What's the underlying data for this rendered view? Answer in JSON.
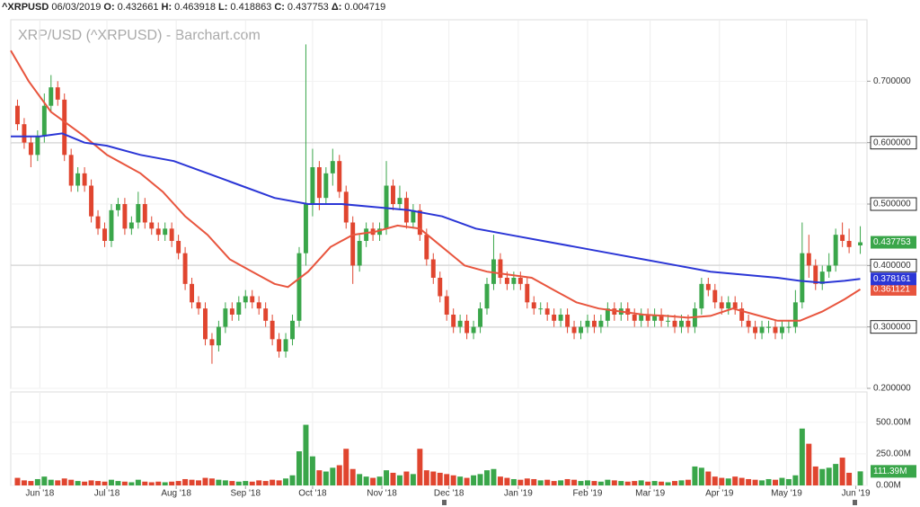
{
  "header": {
    "symbol": "^XRPUSD",
    "date": "06/03/2019",
    "fields": [
      {
        "label": "O:",
        "value": "0.432661"
      },
      {
        "label": "H:",
        "value": "0.463918"
      },
      {
        "label": "L:",
        "value": "0.418863"
      },
      {
        "label": "C:",
        "value": "0.437753"
      },
      {
        "label": "Δ:",
        "value": "0.004719"
      }
    ]
  },
  "chart_data": {
    "type": "candlestick",
    "title": "XRP/USD (^XRPUSD) - Barchart.com",
    "up_color": "#3aa64a",
    "down_color": "#e0452f",
    "grid": true,
    "xlim": [
      -3,
      380
    ],
    "xticks": [
      {
        "value": 10,
        "label": "Jun '18"
      },
      {
        "value": 40,
        "label": "Jul '18"
      },
      {
        "value": 71,
        "label": "Aug '18"
      },
      {
        "value": 102,
        "label": "Sep '18"
      },
      {
        "value": 132,
        "label": "Oct '18"
      },
      {
        "value": 163,
        "label": "Nov '18"
      },
      {
        "value": 193,
        "label": "Dec '18"
      },
      {
        "value": 224,
        "label": "Jan '19"
      },
      {
        "value": 255,
        "label": "Feb '19"
      },
      {
        "value": 283,
        "label": "Mar '19"
      },
      {
        "value": 314,
        "label": "Apr '19"
      },
      {
        "value": 344,
        "label": "May '19"
      },
      {
        "value": 375,
        "label": "Jun '19"
      }
    ],
    "ylim": [
      0.2,
      0.8
    ],
    "yticks": [
      {
        "value": 0.2,
        "label": "0.200000"
      },
      {
        "value": 0.3,
        "label": "0.300000"
      },
      {
        "value": 0.4,
        "label": "0.400000"
      },
      {
        "value": 0.5,
        "label": "0.500000"
      },
      {
        "value": 0.6,
        "label": "0.600000"
      },
      {
        "value": 0.7,
        "label": "0.700000"
      }
    ],
    "hlines": [
      0.6,
      0.5,
      0.4,
      0.3
    ],
    "x": [
      0,
      3,
      6,
      9,
      12,
      15,
      18,
      21,
      24,
      27,
      30,
      33,
      36,
      39,
      42,
      45,
      48,
      51,
      54,
      57,
      60,
      63,
      66,
      69,
      72,
      75,
      78,
      81,
      84,
      87,
      90,
      93,
      96,
      99,
      102,
      105,
      108,
      111,
      114,
      117,
      120,
      123,
      126,
      129,
      132,
      135,
      138,
      141,
      144,
      147,
      150,
      153,
      156,
      159,
      162,
      165,
      168,
      171,
      174,
      177,
      180,
      183,
      186,
      189,
      192,
      195,
      198,
      201,
      204,
      207,
      210,
      213,
      216,
      219,
      222,
      225,
      228,
      231,
      234,
      237,
      240,
      243,
      246,
      249,
      252,
      255,
      258,
      261,
      264,
      267,
      270,
      273,
      276,
      279,
      282,
      285,
      288,
      291,
      294,
      297,
      300,
      303,
      306,
      309,
      312,
      315,
      318,
      321,
      324,
      327,
      330,
      333,
      336,
      339,
      342,
      345,
      348,
      351,
      354,
      357,
      360,
      363,
      366,
      369,
      372,
      377
    ],
    "candles": [
      [
        0.66,
        0.67,
        0.62,
        0.63
      ],
      [
        0.63,
        0.64,
        0.59,
        0.6
      ],
      [
        0.6,
        0.61,
        0.56,
        0.58
      ],
      [
        0.58,
        0.62,
        0.57,
        0.61
      ],
      [
        0.61,
        0.68,
        0.6,
        0.66
      ],
      [
        0.66,
        0.71,
        0.65,
        0.69
      ],
      [
        0.69,
        0.7,
        0.66,
        0.67
      ],
      [
        0.67,
        0.68,
        0.57,
        0.58
      ],
      [
        0.58,
        0.59,
        0.52,
        0.53
      ],
      [
        0.53,
        0.56,
        0.52,
        0.55
      ],
      [
        0.55,
        0.56,
        0.52,
        0.53
      ],
      [
        0.53,
        0.54,
        0.47,
        0.48
      ],
      [
        0.48,
        0.49,
        0.45,
        0.46
      ],
      [
        0.46,
        0.47,
        0.43,
        0.44
      ],
      [
        0.44,
        0.5,
        0.43,
        0.49
      ],
      [
        0.49,
        0.51,
        0.48,
        0.5
      ],
      [
        0.5,
        0.51,
        0.45,
        0.46
      ],
      [
        0.46,
        0.48,
        0.45,
        0.47
      ],
      [
        0.47,
        0.52,
        0.46,
        0.5
      ],
      [
        0.5,
        0.51,
        0.46,
        0.47
      ],
      [
        0.47,
        0.48,
        0.45,
        0.46
      ],
      [
        0.46,
        0.47,
        0.44,
        0.45
      ],
      [
        0.45,
        0.47,
        0.44,
        0.46
      ],
      [
        0.46,
        0.47,
        0.43,
        0.44
      ],
      [
        0.44,
        0.45,
        0.41,
        0.42
      ],
      [
        0.42,
        0.43,
        0.36,
        0.37
      ],
      [
        0.37,
        0.38,
        0.33,
        0.34
      ],
      [
        0.34,
        0.35,
        0.32,
        0.33
      ],
      [
        0.33,
        0.34,
        0.27,
        0.28
      ],
      [
        0.28,
        0.29,
        0.24,
        0.27
      ],
      [
        0.27,
        0.31,
        0.26,
        0.3
      ],
      [
        0.3,
        0.34,
        0.29,
        0.33
      ],
      [
        0.33,
        0.34,
        0.31,
        0.32
      ],
      [
        0.32,
        0.35,
        0.31,
        0.34
      ],
      [
        0.34,
        0.36,
        0.33,
        0.35
      ],
      [
        0.35,
        0.36,
        0.33,
        0.34
      ],
      [
        0.34,
        0.35,
        0.32,
        0.33
      ],
      [
        0.33,
        0.34,
        0.3,
        0.31
      ],
      [
        0.31,
        0.32,
        0.27,
        0.28
      ],
      [
        0.28,
        0.29,
        0.25,
        0.26
      ],
      [
        0.26,
        0.29,
        0.25,
        0.28
      ],
      [
        0.28,
        0.32,
        0.27,
        0.31
      ],
      [
        0.31,
        0.43,
        0.3,
        0.42
      ],
      [
        0.42,
        0.76,
        0.4,
        0.5
      ],
      [
        0.5,
        0.59,
        0.48,
        0.56
      ],
      [
        0.56,
        0.57,
        0.49,
        0.51
      ],
      [
        0.51,
        0.56,
        0.5,
        0.55
      ],
      [
        0.55,
        0.59,
        0.53,
        0.57
      ],
      [
        0.57,
        0.58,
        0.51,
        0.52
      ],
      [
        0.52,
        0.53,
        0.46,
        0.47
      ],
      [
        0.47,
        0.48,
        0.37,
        0.4
      ],
      [
        0.4,
        0.45,
        0.39,
        0.44
      ],
      [
        0.44,
        0.47,
        0.43,
        0.46
      ],
      [
        0.46,
        0.47,
        0.44,
        0.45
      ],
      [
        0.45,
        0.47,
        0.44,
        0.46
      ],
      [
        0.46,
        0.57,
        0.45,
        0.53
      ],
      [
        0.53,
        0.54,
        0.49,
        0.5
      ],
      [
        0.5,
        0.53,
        0.49,
        0.51
      ],
      [
        0.51,
        0.52,
        0.46,
        0.47
      ],
      [
        0.47,
        0.5,
        0.46,
        0.49
      ],
      [
        0.49,
        0.5,
        0.44,
        0.45
      ],
      [
        0.45,
        0.46,
        0.4,
        0.41
      ],
      [
        0.41,
        0.42,
        0.37,
        0.38
      ],
      [
        0.38,
        0.39,
        0.34,
        0.35
      ],
      [
        0.35,
        0.36,
        0.31,
        0.32
      ],
      [
        0.32,
        0.33,
        0.29,
        0.3
      ],
      [
        0.3,
        0.32,
        0.29,
        0.31
      ],
      [
        0.31,
        0.32,
        0.28,
        0.29
      ],
      [
        0.29,
        0.31,
        0.28,
        0.3
      ],
      [
        0.3,
        0.34,
        0.29,
        0.33
      ],
      [
        0.33,
        0.38,
        0.32,
        0.37
      ],
      [
        0.37,
        0.45,
        0.36,
        0.41
      ],
      [
        0.41,
        0.42,
        0.37,
        0.38
      ],
      [
        0.38,
        0.39,
        0.36,
        0.37
      ],
      [
        0.37,
        0.39,
        0.36,
        0.38
      ],
      [
        0.38,
        0.39,
        0.36,
        0.37
      ],
      [
        0.37,
        0.38,
        0.33,
        0.34
      ],
      [
        0.34,
        0.35,
        0.32,
        0.33
      ],
      [
        0.33,
        0.34,
        0.32,
        0.33
      ],
      [
        0.33,
        0.34,
        0.31,
        0.32
      ],
      [
        0.32,
        0.33,
        0.3,
        0.31
      ],
      [
        0.31,
        0.33,
        0.3,
        0.32
      ],
      [
        0.32,
        0.33,
        0.29,
        0.3
      ],
      [
        0.3,
        0.31,
        0.28,
        0.29
      ],
      [
        0.29,
        0.31,
        0.28,
        0.3
      ],
      [
        0.3,
        0.32,
        0.29,
        0.31
      ],
      [
        0.31,
        0.32,
        0.29,
        0.3
      ],
      [
        0.3,
        0.32,
        0.29,
        0.31
      ],
      [
        0.31,
        0.34,
        0.3,
        0.33
      ],
      [
        0.33,
        0.34,
        0.31,
        0.32
      ],
      [
        0.32,
        0.34,
        0.31,
        0.33
      ],
      [
        0.33,
        0.34,
        0.31,
        0.32
      ],
      [
        0.32,
        0.33,
        0.3,
        0.31
      ],
      [
        0.31,
        0.33,
        0.3,
        0.32
      ],
      [
        0.32,
        0.33,
        0.3,
        0.31
      ],
      [
        0.31,
        0.33,
        0.3,
        0.32
      ],
      [
        0.32,
        0.33,
        0.3,
        0.31
      ],
      [
        0.31,
        0.32,
        0.3,
        0.31
      ],
      [
        0.31,
        0.32,
        0.29,
        0.3
      ],
      [
        0.3,
        0.32,
        0.29,
        0.31
      ],
      [
        0.31,
        0.32,
        0.29,
        0.3
      ],
      [
        0.3,
        0.34,
        0.29,
        0.33
      ],
      [
        0.33,
        0.38,
        0.32,
        0.37
      ],
      [
        0.37,
        0.38,
        0.35,
        0.36
      ],
      [
        0.36,
        0.37,
        0.33,
        0.34
      ],
      [
        0.34,
        0.35,
        0.32,
        0.33
      ],
      [
        0.33,
        0.35,
        0.32,
        0.34
      ],
      [
        0.34,
        0.35,
        0.32,
        0.33
      ],
      [
        0.33,
        0.34,
        0.3,
        0.31
      ],
      [
        0.31,
        0.32,
        0.29,
        0.3
      ],
      [
        0.3,
        0.31,
        0.28,
        0.29
      ],
      [
        0.29,
        0.31,
        0.28,
        0.3
      ],
      [
        0.3,
        0.31,
        0.29,
        0.3
      ],
      [
        0.3,
        0.31,
        0.28,
        0.29
      ],
      [
        0.29,
        0.31,
        0.28,
        0.3
      ],
      [
        0.3,
        0.31,
        0.29,
        0.3
      ],
      [
        0.3,
        0.36,
        0.29,
        0.34
      ],
      [
        0.34,
        0.47,
        0.33,
        0.42
      ],
      [
        0.42,
        0.45,
        0.38,
        0.4
      ],
      [
        0.4,
        0.41,
        0.36,
        0.37
      ],
      [
        0.37,
        0.4,
        0.36,
        0.39
      ],
      [
        0.39,
        0.42,
        0.38,
        0.4
      ],
      [
        0.4,
        0.46,
        0.39,
        0.45
      ],
      [
        0.45,
        0.47,
        0.43,
        0.44
      ],
      [
        0.44,
        0.46,
        0.42,
        0.43
      ],
      [
        0.432661,
        0.463918,
        0.418863,
        0.437753
      ]
    ],
    "lines": [
      {
        "color": "#e8553e",
        "x": [
          -3,
          5,
          15,
          30,
          40,
          55,
          65,
          75,
          85,
          95,
          105,
          115,
          121,
          130,
          140,
          150,
          160,
          170,
          180,
          190,
          200,
          210,
          220,
          230,
          240,
          250,
          260,
          270,
          280,
          290,
          300,
          310,
          320,
          330,
          340,
          350,
          360,
          370,
          377
        ],
        "values": [
          0.75,
          0.7,
          0.65,
          0.61,
          0.58,
          0.55,
          0.52,
          0.48,
          0.45,
          0.41,
          0.39,
          0.37,
          0.365,
          0.39,
          0.43,
          0.45,
          0.455,
          0.465,
          0.46,
          0.43,
          0.4,
          0.39,
          0.385,
          0.38,
          0.36,
          0.34,
          0.33,
          0.325,
          0.32,
          0.318,
          0.315,
          0.318,
          0.33,
          0.32,
          0.31,
          0.31,
          0.325,
          0.345,
          0.361121
        ]
      },
      {
        "color": "#2b36d6",
        "x": [
          -3,
          10,
          20,
          30,
          40,
          55,
          70,
          85,
          100,
          115,
          130,
          145,
          160,
          175,
          190,
          205,
          220,
          235,
          250,
          265,
          280,
          295,
          310,
          325,
          340,
          350,
          360,
          370,
          377
        ],
        "values": [
          0.61,
          0.61,
          0.615,
          0.6,
          0.595,
          0.58,
          0.57,
          0.55,
          0.53,
          0.51,
          0.5,
          0.5,
          0.495,
          0.49,
          0.48,
          0.46,
          0.45,
          0.44,
          0.43,
          0.42,
          0.41,
          0.4,
          0.39,
          0.385,
          0.38,
          0.375,
          0.372,
          0.375,
          0.378161
        ]
      }
    ],
    "volumes": [
      60,
      40,
      35,
      50,
      70,
      45,
      40,
      55,
      45,
      35,
      30,
      40,
      35,
      30,
      45,
      35,
      30,
      25,
      45,
      30,
      25,
      30,
      25,
      30,
      35,
      50,
      45,
      40,
      60,
      55,
      45,
      40,
      35,
      30,
      35,
      30,
      40,
      35,
      45,
      40,
      55,
      80,
      270,
      480,
      230,
      120,
      110,
      140,
      160,
      290,
      130,
      90,
      70,
      60,
      70,
      120,
      100,
      80,
      110,
      90,
      290,
      120,
      110,
      100,
      90,
      80,
      70,
      60,
      80,
      90,
      120,
      130,
      70,
      60,
      50,
      45,
      55,
      50,
      40,
      45,
      35,
      40,
      50,
      45,
      35,
      40,
      35,
      30,
      45,
      40,
      35,
      30,
      35,
      40,
      30,
      35,
      30,
      25,
      35,
      40,
      45,
      150,
      140,
      110,
      70,
      60,
      55,
      70,
      60,
      50,
      45,
      40,
      50,
      45,
      60,
      50,
      80,
      450,
      330,
      150,
      130,
      140,
      170,
      220,
      100,
      111.39
    ],
    "volume_last_label": "111.39M",
    "volume_ylim": [
      0,
      740
    ],
    "volume_yticks": [
      {
        "value": 0,
        "label": "0.00M"
      },
      {
        "value": 250,
        "label": "250.00M"
      },
      {
        "value": 500,
        "label": "500.00M"
      }
    ]
  }
}
